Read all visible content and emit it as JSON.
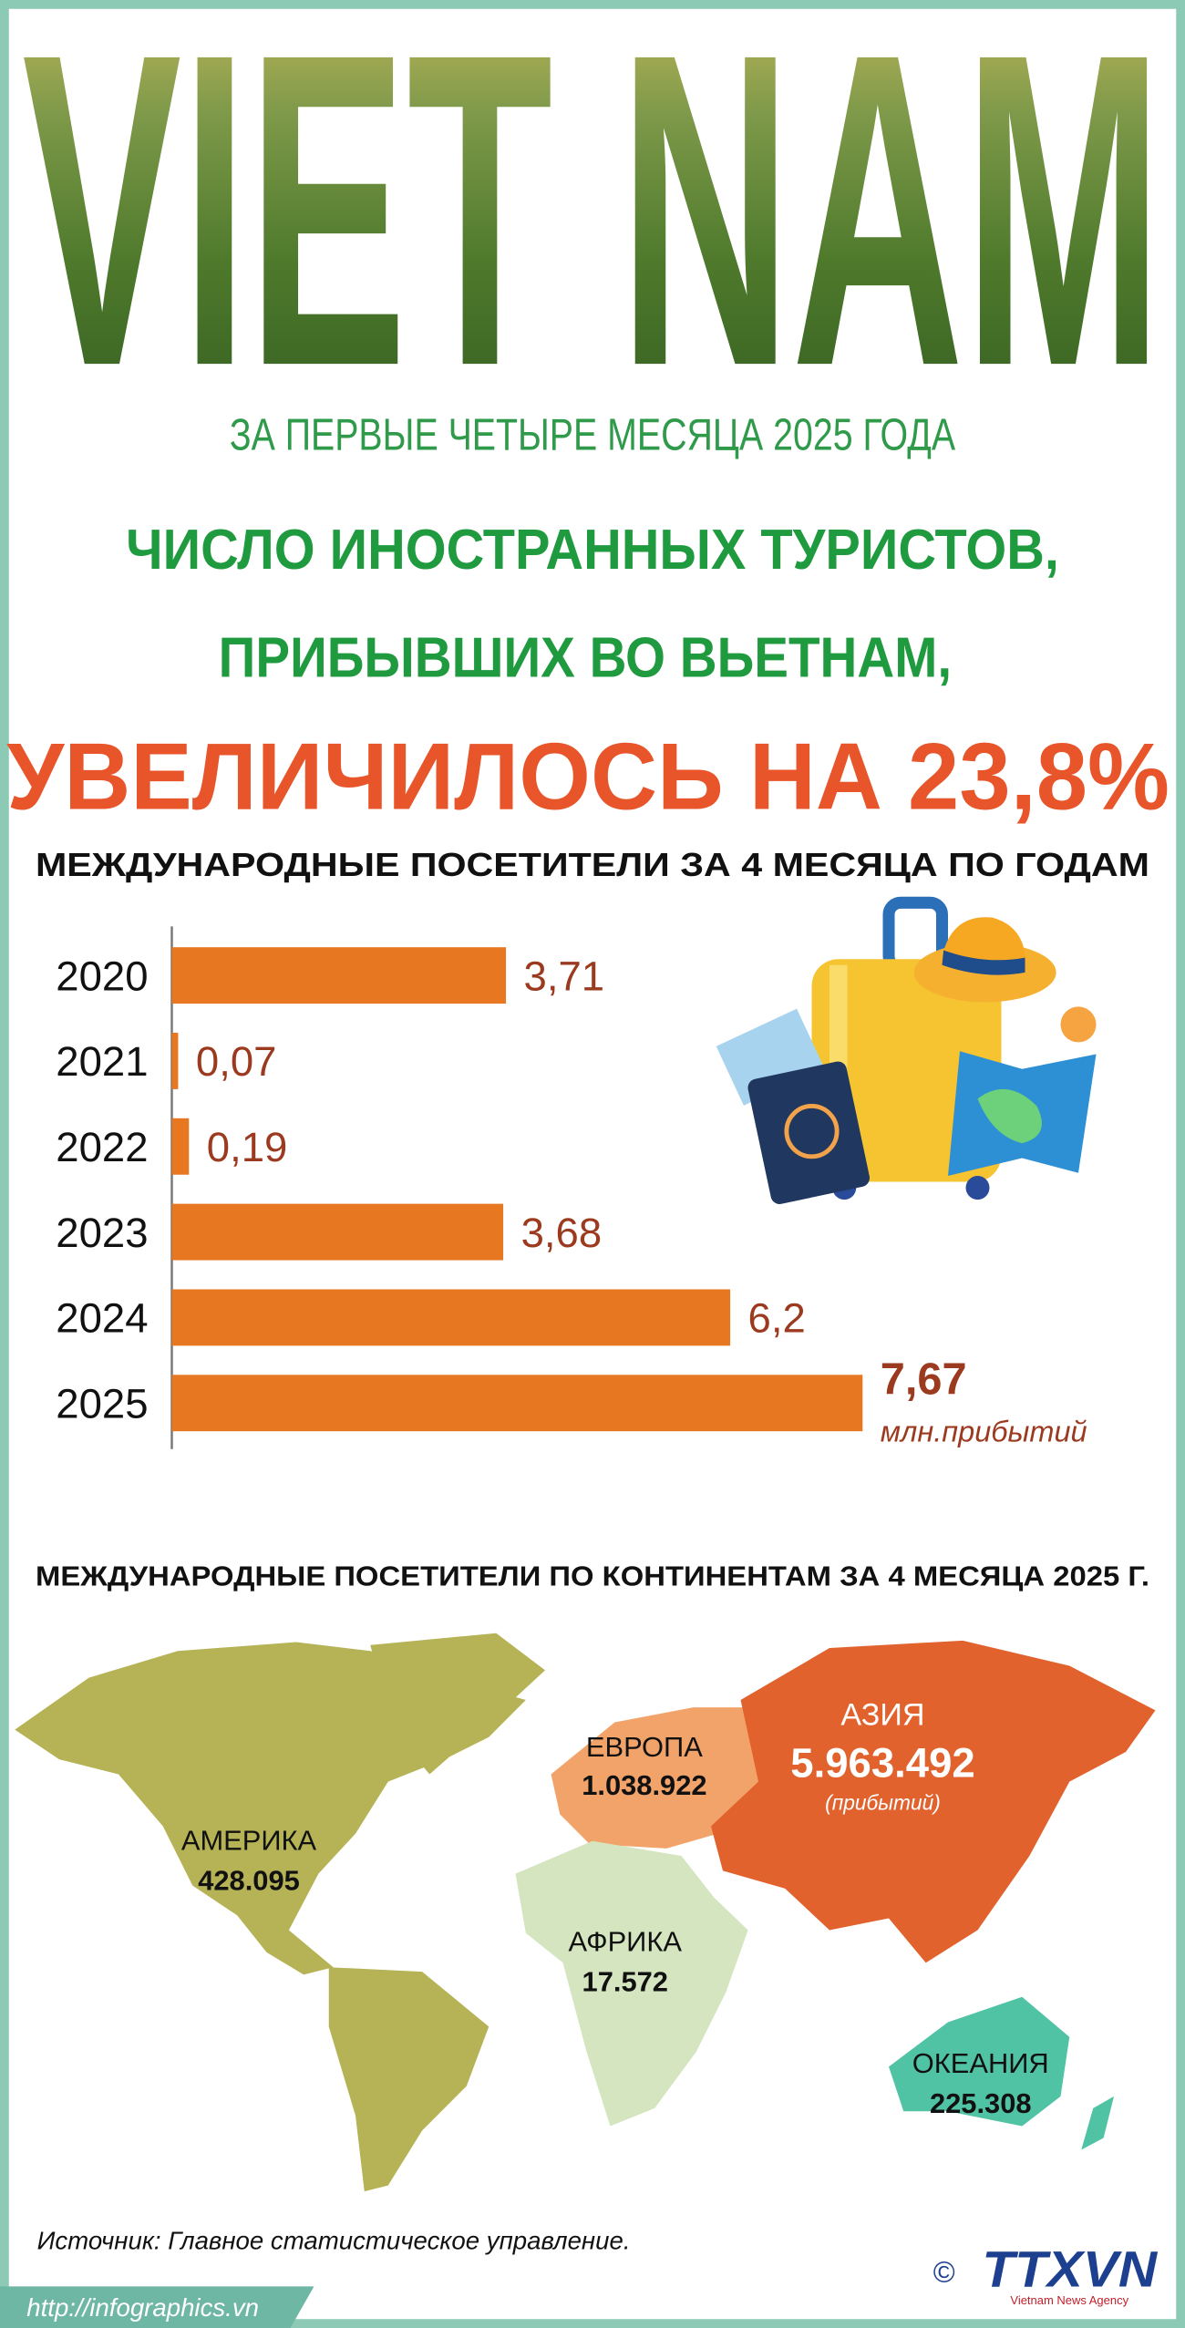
{
  "header": {
    "title": "VIET NAM",
    "line1": "ЗА ПЕРВЫЕ ЧЕТЫРЕ МЕСЯЦА 2025 ГОДА",
    "line2": "ЧИСЛО ИНОСТРАННЫХ ТУРИСТОВ,",
    "line3": "ПРИБЫВШИХ ВО ВЬЕТНАМ,",
    "headline": "УВЕЛИЧИЛОСЬ НА 23,8%"
  },
  "chart_data": {
    "type": "bar",
    "orientation": "horizontal",
    "title": "МЕЖДУНАРОДНЫЕ ПОСЕТИТЕЛИ ЗА 4 МЕСЯЦА ПО ГОДАМ",
    "categories": [
      "2020",
      "2021",
      "2022",
      "2023",
      "2024",
      "2025"
    ],
    "values": [
      3.71,
      0.07,
      0.19,
      3.68,
      6.2,
      7.67
    ],
    "value_labels": [
      "3,71",
      "0,07",
      "0,19",
      "3,68",
      "6,2",
      "7,67"
    ],
    "unit_label": "млн.прибытий",
    "color": "#e87722"
  },
  "map": {
    "title": "МЕЖДУНАРОДНЫЕ ПОСЕТИТЕЛИ ПО КОНТИНЕНТАМ ЗА 4 МЕСЯЦА 2025 Г.",
    "regions": [
      {
        "name": "АМЕРИКА",
        "value": "428.095"
      },
      {
        "name": "ЕВРОПА",
        "value": "1.038.922"
      },
      {
        "name": "АЗИЯ",
        "value": "5.963.492",
        "note": "(прибытий)"
      },
      {
        "name": "АФРИКА",
        "value": "17.572"
      },
      {
        "name": "ОКЕАНИЯ",
        "value": "225.308"
      }
    ]
  },
  "footer": {
    "source": "Источник: Главное статистическое управление.",
    "url": "http://infographics.vn",
    "copyright": "©",
    "logo": "TTXVN",
    "agency": "Vietnam News Agency"
  }
}
